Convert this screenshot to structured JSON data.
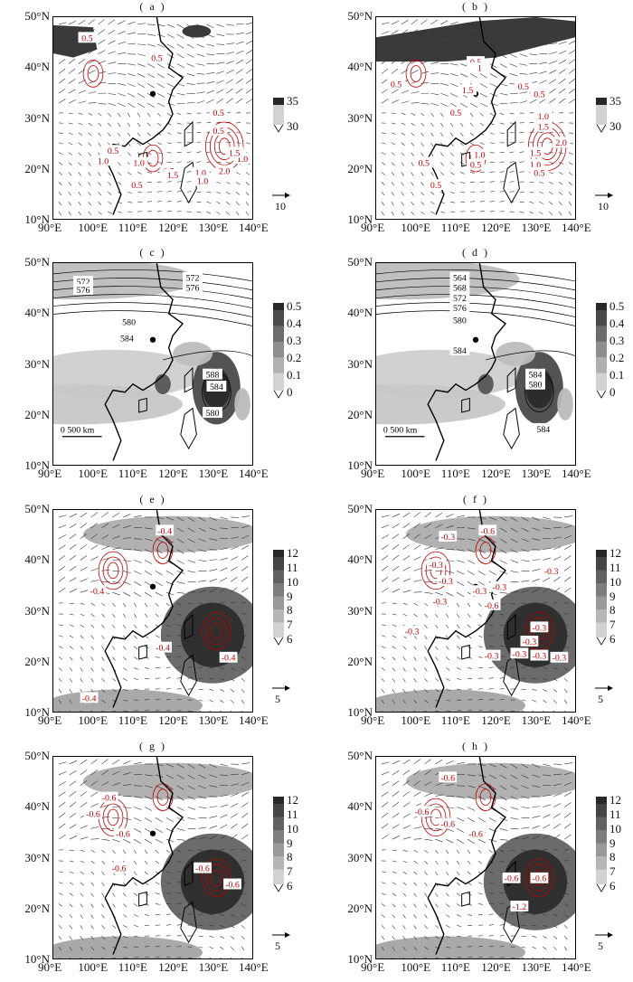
{
  "panels": [
    {
      "letter": "( a )",
      "type": "wind_shade_red",
      "shade_levels": [
        "35",
        "30"
      ],
      "vector_scale": "10",
      "red_labels": [
        "0.5",
        "0.5",
        "0.5",
        "0.5",
        "1.0",
        "1.5",
        "2.0",
        "1.0",
        "0.5",
        "1.0",
        "0.5",
        "1.5",
        "1.0",
        "1.0",
        "0.5"
      ],
      "scale_bar": ""
    },
    {
      "letter": "( b )",
      "type": "wind_shade_red",
      "shade_levels": [
        "35",
        "30"
      ],
      "vector_scale": "10",
      "red_labels": [
        "0.5",
        "1",
        "0.5",
        "1.5",
        "0.5",
        "0.5",
        "0.5",
        "1.0",
        "1.5",
        "2.0",
        "1.5",
        "1.0",
        "1.0",
        "0.5",
        "0.5",
        "0.5",
        "0.5"
      ],
      "scale_bar": ""
    },
    {
      "letter": "( c )",
      "type": "geopotential",
      "shade_levels": [
        "0.5",
        "0.4",
        "0.3",
        "0.2",
        "0.1",
        "0"
      ],
      "vector_scale": "",
      "black_labels": [
        "572",
        "572",
        "576",
        "576",
        "580",
        "584",
        "588",
        "584",
        "580"
      ],
      "scale_bar": "0   500 km"
    },
    {
      "letter": "( d )",
      "type": "geopotential",
      "shade_levels": [
        "0.5",
        "0.4",
        "0.3",
        "0.2",
        "0.1",
        "0"
      ],
      "vector_scale": "",
      "black_labels": [
        "564",
        "568",
        "572",
        "576",
        "580",
        "584",
        "584",
        "580",
        "584"
      ],
      "scale_bar": "0   500 km"
    },
    {
      "letter": "( e )",
      "type": "wind_shade_red",
      "shade_levels": [
        "12",
        "11",
        "10",
        "9",
        "8",
        "7",
        "6"
      ],
      "vector_scale": "5",
      "red_labels": [
        "-0.4",
        "-0.4",
        "-0.4",
        "-0.4",
        "-0.4"
      ],
      "scale_bar": ""
    },
    {
      "letter": "( f )",
      "type": "wind_shade_red",
      "shade_levels": [
        "12",
        "11",
        "10",
        "9",
        "8",
        "7",
        "6"
      ],
      "vector_scale": "5",
      "red_labels": [
        "-0.6",
        "-0.3",
        "-0.3",
        "-0.3",
        "-0.3",
        "-0.3",
        "-0.3",
        "-0.3",
        "-0.6",
        "-0.3",
        "-0.3",
        "-0.3",
        "-0.3",
        "-0.3",
        "-0.3",
        "-0.3"
      ],
      "scale_bar": ""
    },
    {
      "letter": "( g )",
      "type": "wind_shade_red",
      "shade_levels": [
        "12",
        "11",
        "10",
        "9",
        "8",
        "7",
        "6"
      ],
      "vector_scale": "5",
      "red_labels": [
        "-0.6",
        "-0.6",
        "-0.6",
        "-0.6",
        "-0.6",
        "-0.6"
      ],
      "scale_bar": ""
    },
    {
      "letter": "( h )",
      "type": "wind_shade_red",
      "shade_levels": [
        "12",
        "11",
        "10",
        "9",
        "8",
        "7",
        "6"
      ],
      "vector_scale": "5",
      "red_labels": [
        "-0.6",
        "-0.6",
        "-0.6",
        "-0.6",
        "-0.6",
        "-0.6",
        "-1.2"
      ],
      "scale_bar": ""
    }
  ],
  "y_axis": [
    "50°N",
    "40°N",
    "30°N",
    "20°N",
    "10°N"
  ],
  "x_axis": [
    "90°E",
    "100°E",
    "110°E",
    "120°E",
    "130°E",
    "140°E"
  ],
  "colors": {
    "shade_dark": "#2a2a2a",
    "shade_light": "#cfcfcf",
    "red": "#c00000"
  }
}
